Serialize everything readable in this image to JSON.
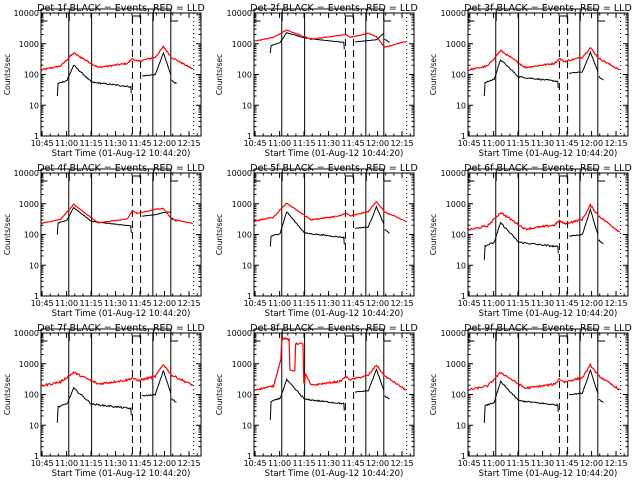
{
  "chart_data": {
    "type": "line",
    "layout": "3x3 grid of panels",
    "y_scale": "log",
    "ylim": [
      1,
      10000
    ],
    "yticks": [
      1,
      10,
      100,
      1000,
      10000
    ],
    "ytick_labels": [
      "1",
      "10",
      "100",
      "1000",
      "10000"
    ],
    "ylabel": "Counts/sec",
    "xlabel": "Start Time (01-Aug-12 10:44:20)",
    "x_units": "minutes after 10:44:20",
    "xlim": [
      0,
      98
    ],
    "xticks": [
      0.67,
      15.67,
      30.67,
      45.67,
      60.67,
      75.67,
      90.67
    ],
    "xtick_labels": [
      "10:45",
      "11:00",
      "11:15",
      "11:30",
      "11:45",
      "12:00",
      "12:15"
    ],
    "vertical_markers": {
      "solid": [
        17,
        31,
        68.5,
        79.5
      ],
      "dashed": [
        56,
        61
      ],
      "dotted": [
        93.5
      ]
    },
    "top_brackets": [
      {
        "x": [
          0,
          4
        ],
        "style": "solid-corner"
      },
      {
        "x": [
          17.3,
          17.3
        ],
        "style": "solid-tick"
      },
      {
        "x": [
          56,
          61
        ],
        "style": "bracket"
      },
      {
        "x": [
          68.8,
          68.8
        ],
        "style": "solid-tick"
      },
      {
        "x": [
          79.5,
          84
        ],
        "style": "solid-corner"
      }
    ],
    "legend": "in title: BLACK = Events, RED = LLD",
    "series_colors": {
      "events": "#000000",
      "lld": "#ff0000"
    },
    "panels": [
      {
        "title": "Det 1f BLACK = Events, RED = LLD",
        "lld": {
          "base": 140,
          "peak1": 500,
          "mid": 170,
          "bump": 330,
          "peak2": 800,
          "tail": 150,
          "noise": 0.06
        },
        "events": {
          "start": 20,
          "base": 65,
          "peak1": 200,
          "mid": 40,
          "post": 90,
          "peak2": 500,
          "tail": 50,
          "noise": 0.05
        }
      },
      {
        "title": "Det 2f BLACK = Events, RED = LLD",
        "lld": {
          "base": 1200,
          "peak1": 2800,
          "mid": 1400,
          "bump": 2000,
          "peak2": 1700,
          "tail": 1200,
          "noise": 0.02
        },
        "events": {
          "start": 500,
          "base": 1100,
          "peak1": 2300,
          "mid": 1100,
          "post": 1150,
          "peak2": 1350,
          "tail": 1100,
          "noise": 0.02
        }
      },
      {
        "title": "Det 3f BLACK = Events, RED = LLD",
        "lld": {
          "base": 140,
          "peak1": 600,
          "mid": 170,
          "bump": 330,
          "peak2": 750,
          "tail": 140,
          "noise": 0.06
        },
        "events": {
          "start": 20,
          "base": 70,
          "peak1": 300,
          "mid": 60,
          "post": 110,
          "peak2": 520,
          "tail": 65,
          "noise": 0.05
        }
      },
      {
        "title": "Det 4f BLACK = Events, RED = LLD",
        "lld": {
          "base": 230,
          "peak1": 950,
          "mid": 240,
          "bump": 600,
          "peak2": 700,
          "tail": 230,
          "noise": 0.02
        },
        "events": {
          "start": 100,
          "base": 300,
          "peak1": 750,
          "mid": 190,
          "post": 400,
          "peak2": 520,
          "tail": 270,
          "noise": 0.02
        }
      },
      {
        "title": "Det 5f BLACK = Events, RED = LLD",
        "lld": {
          "base": 270,
          "peak1": 1050,
          "mid": 300,
          "bump": 500,
          "peak2": 1200,
          "tail": 270,
          "noise": 0.04
        },
        "events": {
          "start": 40,
          "base": 110,
          "peak1": 550,
          "mid": 80,
          "post": 160,
          "peak2": 800,
          "tail": 110,
          "noise": 0.04
        }
      },
      {
        "title": "Det 6f BLACK = Events, RED = LLD",
        "lld": {
          "base": 140,
          "peak1": 520,
          "mid": 150,
          "bump": 280,
          "peak2": 900,
          "tail": 120,
          "noise": 0.07
        },
        "events": {
          "start": 15,
          "base": 55,
          "peak1": 240,
          "mid": 40,
          "post": 90,
          "peak2": 650,
          "tail": 50,
          "noise": 0.06
        }
      },
      {
        "title": "Det 7f BLACK = Events, RED = LLD",
        "lld": {
          "base": 190,
          "peak1": 520,
          "mid": 220,
          "bump": 350,
          "peak2": 950,
          "tail": 200,
          "noise": 0.08
        },
        "events": {
          "start": 12,
          "base": 50,
          "peak1": 160,
          "mid": 35,
          "post": 90,
          "peak2": 600,
          "tail": 55,
          "noise": 0.06
        }
      },
      {
        "title": "Det 8f BLACK = Events, RED = LLD",
        "lld": {
          "base": 140,
          "peak1": 7000,
          "mid": 200,
          "bump": 380,
          "peak2": 900,
          "tail": 140,
          "noise": 0.06,
          "saturation": {
            "from": 17,
            "to": 31,
            "levels": [
              7000,
              600,
              4500
            ]
          }
        },
        "events": {
          "start": 15,
          "base": 75,
          "peak1": 300,
          "mid": 50,
          "post": 120,
          "peak2": 650,
          "tail": 70,
          "noise": 0.05
        }
      },
      {
        "title": "Det 9f BLACK = Events, RED = LLD",
        "lld": {
          "base": 140,
          "peak1": 520,
          "mid": 160,
          "bump": 320,
          "peak2": 900,
          "tail": 140,
          "noise": 0.07
        },
        "events": {
          "start": 12,
          "base": 55,
          "peak1": 260,
          "mid": 45,
          "post": 100,
          "peak2": 620,
          "tail": 55,
          "noise": 0.05
        }
      }
    ]
  }
}
